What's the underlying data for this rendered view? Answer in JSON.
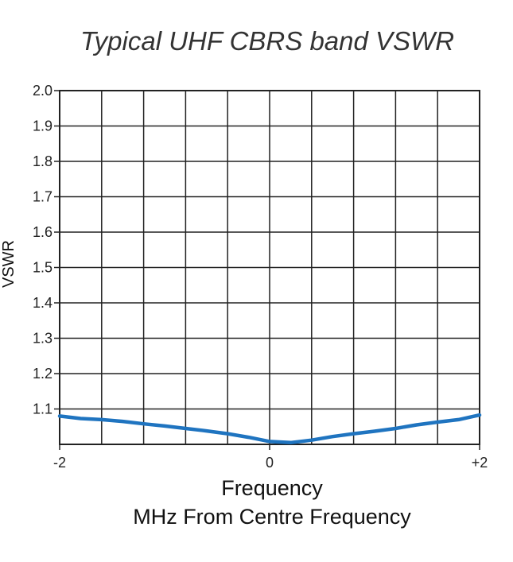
{
  "chart_data": {
    "type": "line",
    "title": "Typical UHF CBRS band VSWR",
    "xlabel": "Frequency",
    "xlabel2": "MHz From Centre Frequency",
    "ylabel": "VSWR",
    "xlim": [
      -2,
      2
    ],
    "ylim": [
      1.0,
      2.0
    ],
    "x_ticks": [
      {
        "value": -2,
        "label": "-2"
      },
      {
        "value": 0,
        "label": "0"
      },
      {
        "value": 2,
        "label": "+2"
      }
    ],
    "y_ticks": [
      {
        "value": 1.1,
        "label": "1.1"
      },
      {
        "value": 1.2,
        "label": "1.2"
      },
      {
        "value": 1.3,
        "label": "1.3"
      },
      {
        "value": 1.4,
        "label": "1.4"
      },
      {
        "value": 1.5,
        "label": "1.5"
      },
      {
        "value": 1.6,
        "label": "1.6"
      },
      {
        "value": 1.7,
        "label": "1.7"
      },
      {
        "value": 1.8,
        "label": "1.8"
      },
      {
        "value": 1.9,
        "label": "1.9"
      },
      {
        "value": 2.0,
        "label": "2.0"
      }
    ],
    "grid": true,
    "x_grid_divisions": 10,
    "series": [
      {
        "color": "#1f74c0",
        "x": [
          -2.0,
          -1.8,
          -1.6,
          -1.4,
          -1.2,
          -1.0,
          -0.8,
          -0.6,
          -0.4,
          -0.2,
          0.0,
          0.2,
          0.4,
          0.6,
          0.8,
          1.0,
          1.2,
          1.4,
          1.6,
          1.8,
          2.0
        ],
        "y": [
          1.08,
          1.073,
          1.07,
          1.065,
          1.058,
          1.052,
          1.045,
          1.038,
          1.03,
          1.02,
          1.008,
          1.005,
          1.012,
          1.022,
          1.03,
          1.037,
          1.045,
          1.055,
          1.063,
          1.07,
          1.083
        ]
      }
    ]
  }
}
